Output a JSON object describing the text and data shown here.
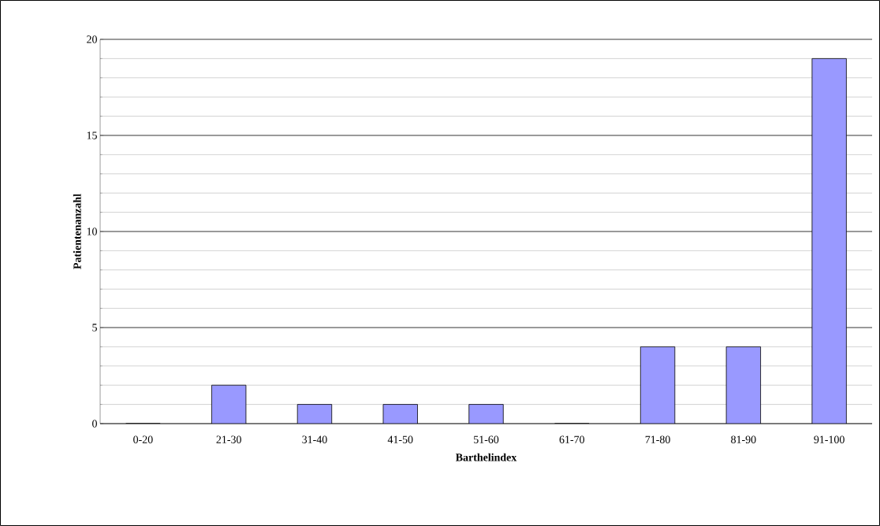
{
  "chart_data": {
    "type": "bar",
    "xlabel": "Barthelindex",
    "ylabel": "Patientenanzahl",
    "categories": [
      "0-20",
      "21-30",
      "31-40",
      "41-50",
      "51-60",
      "61-70",
      "71-80",
      "81-90",
      "91-100"
    ],
    "values": [
      0,
      2,
      1,
      1,
      1,
      0,
      4,
      4,
      19
    ],
    "color": "#9999ff",
    "ylim": [
      0,
      20
    ],
    "yticks": [
      0,
      5,
      10,
      15,
      20
    ],
    "grid": "y"
  }
}
